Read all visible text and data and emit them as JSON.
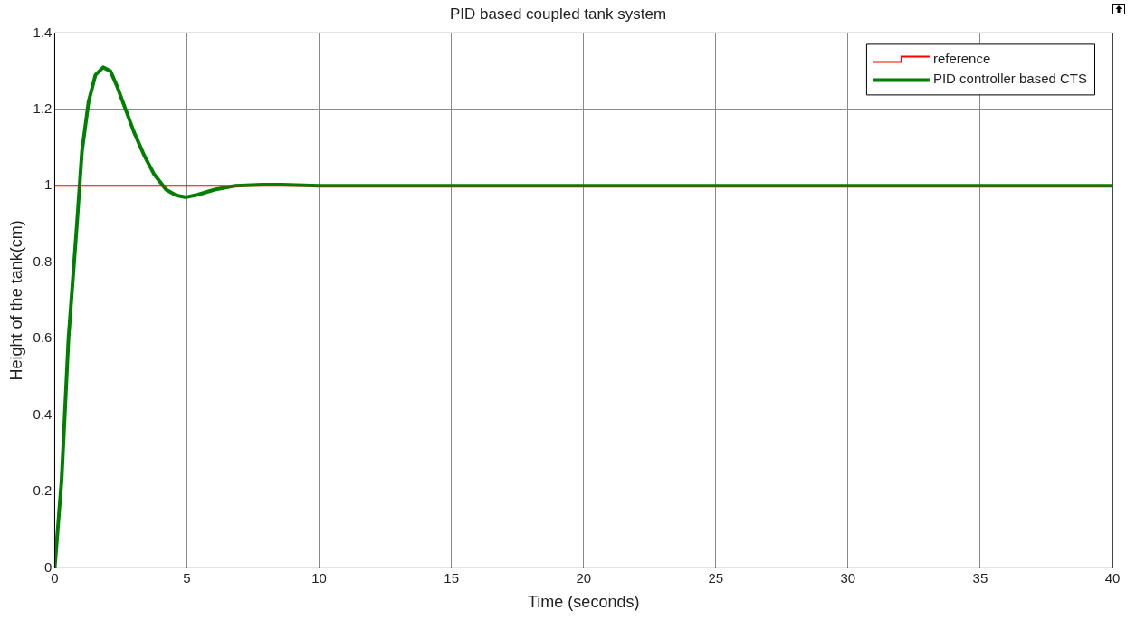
{
  "chart_data": {
    "type": "line",
    "title": "PID based coupled tank system",
    "xlabel": "Time (seconds)",
    "ylabel": "Height of the tank(cm)",
    "series": [
      {
        "name": "reference",
        "color": "#ff0000",
        "type": "step",
        "x": [
          0,
          40
        ],
        "values": [
          1,
          1
        ]
      },
      {
        "name": "PID controller based CTS",
        "color": "#008000",
        "x": [
          0,
          0.26,
          0.52,
          0.84,
          1.03,
          1.28,
          1.54,
          1.83,
          2.11,
          2.36,
          2.68,
          3.0,
          3.38,
          3.76,
          4.21,
          4.59,
          4.97,
          5.42,
          6.05,
          6.82,
          7.84,
          8.6,
          10,
          12,
          15,
          20,
          25,
          30,
          35,
          40
        ],
        "values": [
          0,
          0.23,
          0.6,
          0.9,
          1.09,
          1.22,
          1.29,
          1.31,
          1.3,
          1.26,
          1.2,
          1.14,
          1.08,
          1.03,
          0.99,
          0.975,
          0.97,
          0.977,
          0.99,
          1.0,
          1.003,
          1.003,
          1.0,
          1.0,
          1.0,
          1.0,
          1.0,
          1.0,
          1.0,
          1.0
        ]
      }
    ],
    "xlim": [
      0,
      40
    ],
    "xticks": [
      0,
      5,
      10,
      15,
      20,
      25,
      30,
      35,
      40
    ],
    "ylim": [
      0,
      1.4
    ],
    "yticks": [
      0,
      0.2,
      0.4,
      0.6,
      0.8,
      1,
      1.2,
      1.4
    ],
    "grid": true,
    "legend": "top right",
    "marker": "none",
    "line_style": "solid"
  }
}
